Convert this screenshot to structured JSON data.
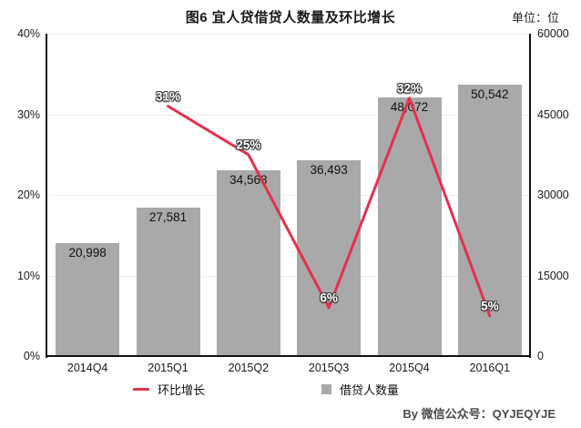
{
  "header": {
    "title": "图6 宜人贷借贷人数量及环比增长",
    "unit_label": "单位：位"
  },
  "chart_data": {
    "type": "bar+line",
    "categories": [
      "2014Q4",
      "2015Q1",
      "2015Q2",
      "2015Q3",
      "2015Q4",
      "2016Q1"
    ],
    "series": [
      {
        "name": "借贷人数量",
        "type": "bar",
        "axis": "right",
        "values": [
          20998,
          27581,
          34568,
          36493,
          48072,
          50542
        ],
        "labels": [
          "20,998",
          "27,581",
          "34,568",
          "36,493",
          "48,072",
          "50,542"
        ],
        "color": "#a9a9a9"
      },
      {
        "name": "环比增长",
        "type": "line",
        "axis": "left",
        "values": [
          null,
          31,
          25,
          6,
          32,
          5
        ],
        "labels": [
          "",
          "31%",
          "25%",
          "6%",
          "32%",
          "5%"
        ],
        "color": "#e5304c"
      }
    ],
    "left_axis": {
      "tick_labels": [
        "40%",
        "30%",
        "20%",
        "10%",
        "0%"
      ],
      "tick_values": [
        40,
        30,
        20,
        10,
        0
      ],
      "min": 0,
      "max": 40
    },
    "right_axis": {
      "tick_labels": [
        "60000",
        "45000",
        "30000",
        "15000",
        "0"
      ],
      "tick_values": [
        60000,
        45000,
        30000,
        15000,
        0
      ],
      "min": 0,
      "max": 60000
    },
    "grid": true,
    "legend_position": "bottom",
    "title": "图6 宜人贷借贷人数量及环比增长"
  },
  "legend": {
    "line_label": "环比增长",
    "bar_label": "借贷人数量"
  },
  "footer": {
    "credit": "By 微信公众号：QYJEQYJE"
  }
}
